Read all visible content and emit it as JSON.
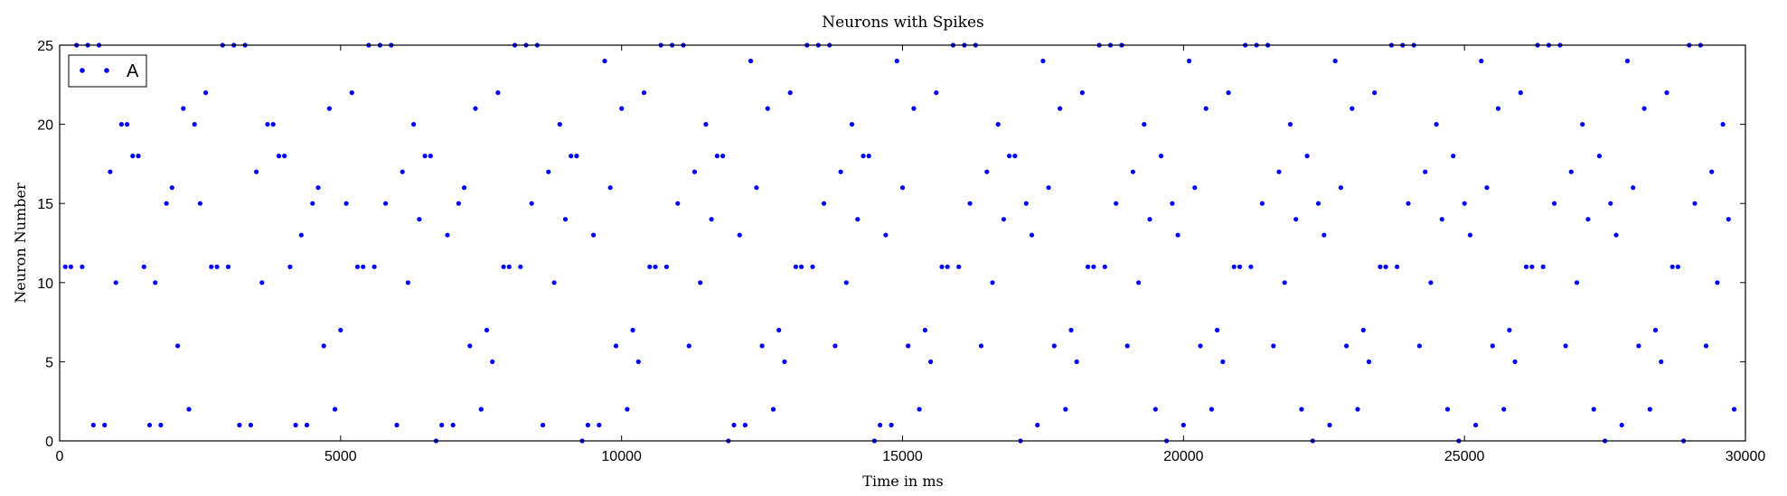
{
  "chart_data": {
    "type": "scatter",
    "title": "Neurons with Spikes",
    "xlabel": "Time in ms",
    "ylabel": "Neuron Number",
    "xlim": [
      0,
      30000
    ],
    "ylim": [
      0,
      25
    ],
    "xticks": [
      "0",
      "5000",
      "10000",
      "15000",
      "20000",
      "25000",
      "30000"
    ],
    "yticks": [
      "0",
      "5",
      "10",
      "15",
      "20",
      "25"
    ],
    "grid": false,
    "legend_position": "top-left",
    "marker_color": "#0000ff",
    "series": [
      {
        "name": "A",
        "points": [
          [
            100,
            11
          ],
          [
            200,
            11
          ],
          [
            300,
            25
          ],
          [
            400,
            11
          ],
          [
            500,
            25
          ],
          [
            600,
            1
          ],
          [
            700,
            25
          ],
          [
            800,
            1
          ],
          [
            900,
            17
          ],
          [
            1000,
            10
          ],
          [
            1100,
            20
          ],
          [
            1200,
            20
          ],
          [
            1300,
            18
          ],
          [
            1400,
            18
          ],
          [
            1500,
            11
          ],
          [
            1600,
            1
          ],
          [
            1700,
            10
          ],
          [
            1800,
            1
          ],
          [
            1900,
            15
          ],
          [
            2000,
            16
          ],
          [
            2100,
            6
          ],
          [
            2200,
            21
          ],
          [
            2300,
            2
          ],
          [
            2400,
            20
          ],
          [
            2500,
            15
          ],
          [
            2600,
            22
          ],
          [
            2700,
            11
          ],
          [
            2800,
            11
          ],
          [
            2900,
            25
          ],
          [
            3000,
            11
          ],
          [
            3100,
            25
          ],
          [
            3200,
            1
          ],
          [
            3300,
            25
          ],
          [
            3400,
            1
          ],
          [
            3500,
            17
          ],
          [
            3600,
            10
          ],
          [
            3700,
            20
          ],
          [
            3800,
            20
          ],
          [
            3900,
            18
          ],
          [
            4000,
            18
          ],
          [
            4100,
            11
          ],
          [
            4200,
            1
          ],
          [
            4300,
            13
          ],
          [
            4400,
            1
          ],
          [
            4500,
            15
          ],
          [
            4600,
            16
          ],
          [
            4700,
            6
          ],
          [
            4800,
            21
          ],
          [
            4900,
            2
          ],
          [
            5000,
            7
          ],
          [
            5100,
            15
          ],
          [
            5200,
            22
          ],
          [
            5300,
            11
          ],
          [
            5400,
            11
          ],
          [
            5500,
            25
          ],
          [
            5600,
            11
          ],
          [
            5700,
            25
          ],
          [
            5800,
            15
          ],
          [
            5900,
            25
          ],
          [
            6000,
            1
          ],
          [
            6100,
            17
          ],
          [
            6200,
            10
          ],
          [
            6300,
            20
          ],
          [
            6400,
            14
          ],
          [
            6500,
            18
          ],
          [
            6600,
            18
          ],
          [
            6700,
            0
          ],
          [
            6800,
            1
          ],
          [
            6900,
            13
          ],
          [
            7000,
            1
          ],
          [
            7100,
            15
          ],
          [
            7200,
            16
          ],
          [
            7300,
            6
          ],
          [
            7400,
            21
          ],
          [
            7500,
            2
          ],
          [
            7600,
            7
          ],
          [
            7700,
            5
          ],
          [
            7800,
            22
          ],
          [
            7900,
            11
          ],
          [
            8000,
            11
          ],
          [
            8100,
            25
          ],
          [
            8200,
            11
          ],
          [
            8300,
            25
          ],
          [
            8400,
            15
          ],
          [
            8500,
            25
          ],
          [
            8600,
            1
          ],
          [
            8700,
            17
          ],
          [
            8800,
            10
          ],
          [
            8900,
            20
          ],
          [
            9000,
            14
          ],
          [
            9100,
            18
          ],
          [
            9200,
            18
          ],
          [
            9300,
            0
          ],
          [
            9400,
            1
          ],
          [
            9500,
            13
          ],
          [
            9600,
            1
          ],
          [
            9700,
            24
          ],
          [
            9800,
            16
          ],
          [
            9900,
            6
          ],
          [
            10000,
            21
          ],
          [
            10100,
            2
          ],
          [
            10200,
            7
          ],
          [
            10300,
            5
          ],
          [
            10400,
            22
          ],
          [
            10500,
            11
          ],
          [
            10600,
            11
          ],
          [
            10700,
            25
          ],
          [
            10800,
            11
          ],
          [
            10900,
            25
          ],
          [
            11000,
            15
          ],
          [
            11100,
            25
          ],
          [
            11200,
            6
          ],
          [
            11300,
            17
          ],
          [
            11400,
            10
          ],
          [
            11500,
            20
          ],
          [
            11600,
            14
          ],
          [
            11700,
            18
          ],
          [
            11800,
            18
          ],
          [
            11900,
            0
          ],
          [
            12000,
            1
          ],
          [
            12100,
            13
          ],
          [
            12200,
            1
          ],
          [
            12300,
            24
          ],
          [
            12400,
            16
          ],
          [
            12500,
            6
          ],
          [
            12600,
            21
          ],
          [
            12700,
            2
          ],
          [
            12800,
            7
          ],
          [
            12900,
            5
          ],
          [
            13000,
            22
          ],
          [
            13100,
            11
          ],
          [
            13200,
            11
          ],
          [
            13300,
            25
          ],
          [
            13400,
            11
          ],
          [
            13500,
            25
          ],
          [
            13600,
            15
          ],
          [
            13700,
            25
          ],
          [
            13800,
            6
          ],
          [
            13900,
            17
          ],
          [
            14000,
            10
          ],
          [
            14100,
            20
          ],
          [
            14200,
            14
          ],
          [
            14300,
            18
          ],
          [
            14400,
            18
          ],
          [
            14500,
            0
          ],
          [
            14600,
            1
          ],
          [
            14700,
            13
          ],
          [
            14800,
            1
          ],
          [
            14900,
            24
          ],
          [
            15000,
            16
          ],
          [
            15100,
            6
          ],
          [
            15200,
            21
          ],
          [
            15300,
            2
          ],
          [
            15400,
            7
          ],
          [
            15500,
            5
          ],
          [
            15600,
            22
          ],
          [
            15700,
            11
          ],
          [
            15800,
            11
          ],
          [
            15900,
            25
          ],
          [
            16000,
            11
          ],
          [
            16100,
            25
          ],
          [
            16200,
            15
          ],
          [
            16300,
            25
          ],
          [
            16400,
            6
          ],
          [
            16500,
            17
          ],
          [
            16600,
            10
          ],
          [
            16700,
            20
          ],
          [
            16800,
            14
          ],
          [
            16900,
            18
          ],
          [
            17000,
            18
          ],
          [
            17100,
            0
          ],
          [
            17200,
            15
          ],
          [
            17300,
            13
          ],
          [
            17400,
            1
          ],
          [
            17500,
            24
          ],
          [
            17600,
            16
          ],
          [
            17700,
            6
          ],
          [
            17800,
            21
          ],
          [
            17900,
            2
          ],
          [
            18000,
            7
          ],
          [
            18100,
            5
          ],
          [
            18200,
            22
          ],
          [
            18300,
            11
          ],
          [
            18400,
            11
          ],
          [
            18500,
            25
          ],
          [
            18600,
            11
          ],
          [
            18700,
            25
          ],
          [
            18800,
            15
          ],
          [
            18900,
            25
          ],
          [
            19000,
            6
          ],
          [
            19100,
            17
          ],
          [
            19200,
            10
          ],
          [
            19300,
            20
          ],
          [
            19400,
            14
          ],
          [
            19500,
            2
          ],
          [
            19600,
            18
          ],
          [
            19700,
            0
          ],
          [
            19800,
            15
          ],
          [
            19900,
            13
          ],
          [
            20000,
            1
          ],
          [
            20100,
            24
          ],
          [
            20200,
            16
          ],
          [
            20300,
            6
          ],
          [
            20400,
            21
          ],
          [
            20500,
            2
          ],
          [
            20600,
            7
          ],
          [
            20700,
            5
          ],
          [
            20800,
            22
          ],
          [
            20900,
            11
          ],
          [
            21000,
            11
          ],
          [
            21100,
            25
          ],
          [
            21200,
            11
          ],
          [
            21300,
            25
          ],
          [
            21400,
            15
          ],
          [
            21500,
            25
          ],
          [
            21600,
            6
          ],
          [
            21700,
            17
          ],
          [
            21800,
            10
          ],
          [
            21900,
            20
          ],
          [
            22000,
            14
          ],
          [
            22100,
            2
          ],
          [
            22200,
            18
          ],
          [
            22300,
            0
          ],
          [
            22400,
            15
          ],
          [
            22500,
            13
          ],
          [
            22600,
            1
          ],
          [
            22700,
            24
          ],
          [
            22800,
            16
          ],
          [
            22900,
            6
          ],
          [
            23000,
            21
          ],
          [
            23100,
            2
          ],
          [
            23200,
            7
          ],
          [
            23300,
            5
          ],
          [
            23400,
            22
          ],
          [
            23500,
            11
          ],
          [
            23600,
            11
          ],
          [
            23700,
            25
          ],
          [
            23800,
            11
          ],
          [
            23900,
            25
          ],
          [
            24000,
            15
          ],
          [
            24100,
            25
          ],
          [
            24200,
            6
          ],
          [
            24300,
            17
          ],
          [
            24400,
            10
          ],
          [
            24500,
            20
          ],
          [
            24600,
            14
          ],
          [
            24700,
            2
          ],
          [
            24800,
            18
          ],
          [
            24900,
            0
          ],
          [
            25000,
            15
          ],
          [
            25100,
            13
          ],
          [
            25200,
            1
          ],
          [
            25300,
            24
          ],
          [
            25400,
            16
          ],
          [
            25500,
            6
          ],
          [
            25600,
            21
          ],
          [
            25700,
            2
          ],
          [
            25800,
            7
          ],
          [
            25900,
            5
          ],
          [
            26000,
            22
          ],
          [
            26100,
            11
          ],
          [
            26200,
            11
          ],
          [
            26300,
            25
          ],
          [
            26400,
            11
          ],
          [
            26500,
            25
          ],
          [
            26600,
            15
          ],
          [
            26700,
            25
          ],
          [
            26800,
            6
          ],
          [
            26900,
            17
          ],
          [
            27000,
            10
          ],
          [
            27100,
            20
          ],
          [
            27200,
            14
          ],
          [
            27300,
            2
          ],
          [
            27400,
            18
          ],
          [
            27500,
            0
          ],
          [
            27600,
            15
          ],
          [
            27700,
            13
          ],
          [
            27800,
            1
          ],
          [
            27900,
            24
          ],
          [
            28000,
            16
          ],
          [
            28100,
            6
          ],
          [
            28200,
            21
          ],
          [
            28300,
            2
          ],
          [
            28400,
            7
          ],
          [
            28500,
            5
          ],
          [
            28600,
            22
          ],
          [
            28700,
            11
          ],
          [
            28800,
            11
          ],
          [
            28900,
            0
          ],
          [
            29000,
            25
          ],
          [
            29100,
            15
          ],
          [
            29200,
            25
          ],
          [
            29300,
            6
          ],
          [
            29400,
            17
          ],
          [
            29500,
            10
          ],
          [
            29600,
            20
          ],
          [
            29700,
            14
          ],
          [
            29800,
            2
          ]
        ]
      }
    ]
  }
}
